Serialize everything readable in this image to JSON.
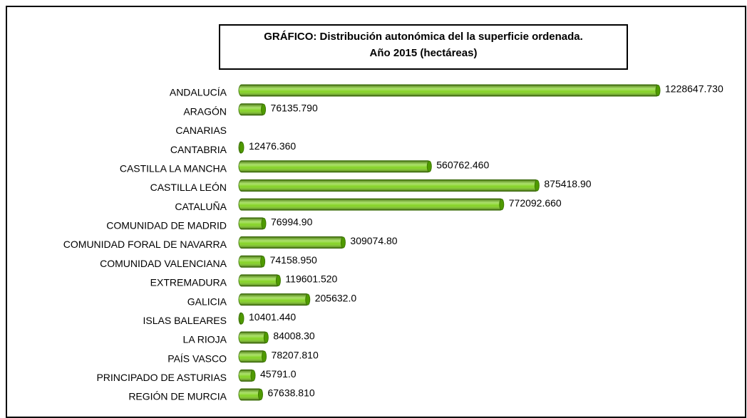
{
  "chart_data": {
    "type": "bar",
    "orientation": "horizontal",
    "title": [
      "GRÁFICO: Distribución autonómica del la superficie ordenada.",
      "Año 2015 (hectáreas)"
    ],
    "color": "#7fd11b",
    "categories": [
      "ANDALUCÍA",
      "ARAGÓN",
      "CANARIAS",
      "CANTABRIA",
      "CASTILLA LA MANCHA",
      "CASTILLA LEÓN",
      "CATALUÑA",
      "COMUNIDAD DE MADRID",
      "COMUNIDAD FORAL DE NAVARRA",
      "COMUNIDAD VALENCIANA",
      "EXTREMADURA",
      "GALICIA",
      "ISLAS BALEARES",
      "LA RIOJA",
      "PAÍS VASCO",
      "PRINCIPADO DE ASTURIAS",
      "REGIÓN DE MURCIA"
    ],
    "values": [
      1228647.73,
      76135.79,
      null,
      12476.36,
      560762.46,
      875418.9,
      772092.66,
      76994.9,
      309074.8,
      74158.95,
      119601.52,
      205632,
      10401.44,
      84008.3,
      78207.81,
      45791,
      67638.81
    ],
    "value_labels": [
      "1228647.730",
      "76135.790",
      null,
      "12476.360",
      "560762.460",
      "875418.90",
      "772092.660",
      "76994.90",
      "309074.80",
      "74158.950",
      "119601.520",
      "205632.0",
      "10401.440",
      "84008.30",
      "78207.810",
      "45791.0",
      "67638.810"
    ]
  }
}
